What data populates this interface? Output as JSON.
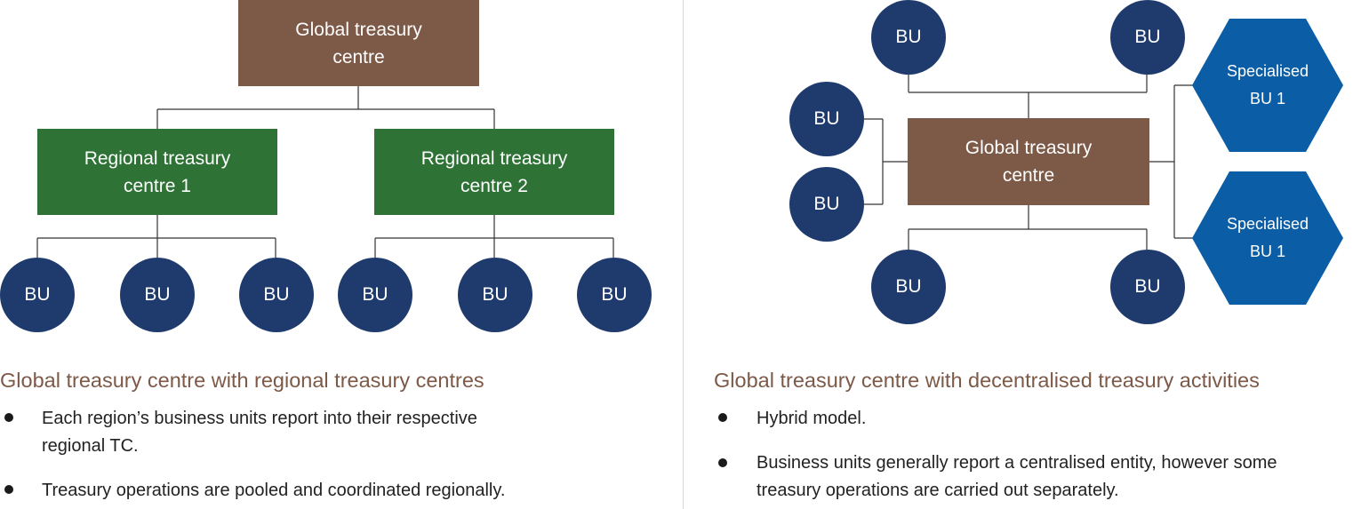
{
  "left": {
    "global_centre": [
      "Global treasury",
      "centre"
    ],
    "regional_1": [
      "Regional treasury",
      "centre 1"
    ],
    "regional_2": [
      "Regional treasury",
      "centre 2"
    ],
    "bu_label": "BU",
    "heading": "Global treasury centre with regional treasury centres",
    "bullets": [
      [
        "Each region’s business units report into their respective",
        "regional TC."
      ],
      [
        "Treasury operations are pooled and coordinated regionally."
      ]
    ]
  },
  "right": {
    "global_centre": [
      "Global treasury",
      "centre"
    ],
    "bu_label": "BU",
    "specialised_1": [
      "Specialised",
      "BU 1"
    ],
    "specialised_2": [
      "Specialised",
      "BU 1"
    ],
    "heading": "Global treasury centre with decentralised treasury activities",
    "bullets": [
      [
        "Hybrid model."
      ],
      [
        "Business units generally report a centralised entity, however some",
        "treasury operations are carried out separately."
      ]
    ]
  },
  "colors": {
    "global_centre": "#7d5947",
    "regional_centre": "#2e7236",
    "business_unit": "#1f3b6e",
    "specialised_unit": "#0b5da5",
    "heading": "#7d5947"
  }
}
